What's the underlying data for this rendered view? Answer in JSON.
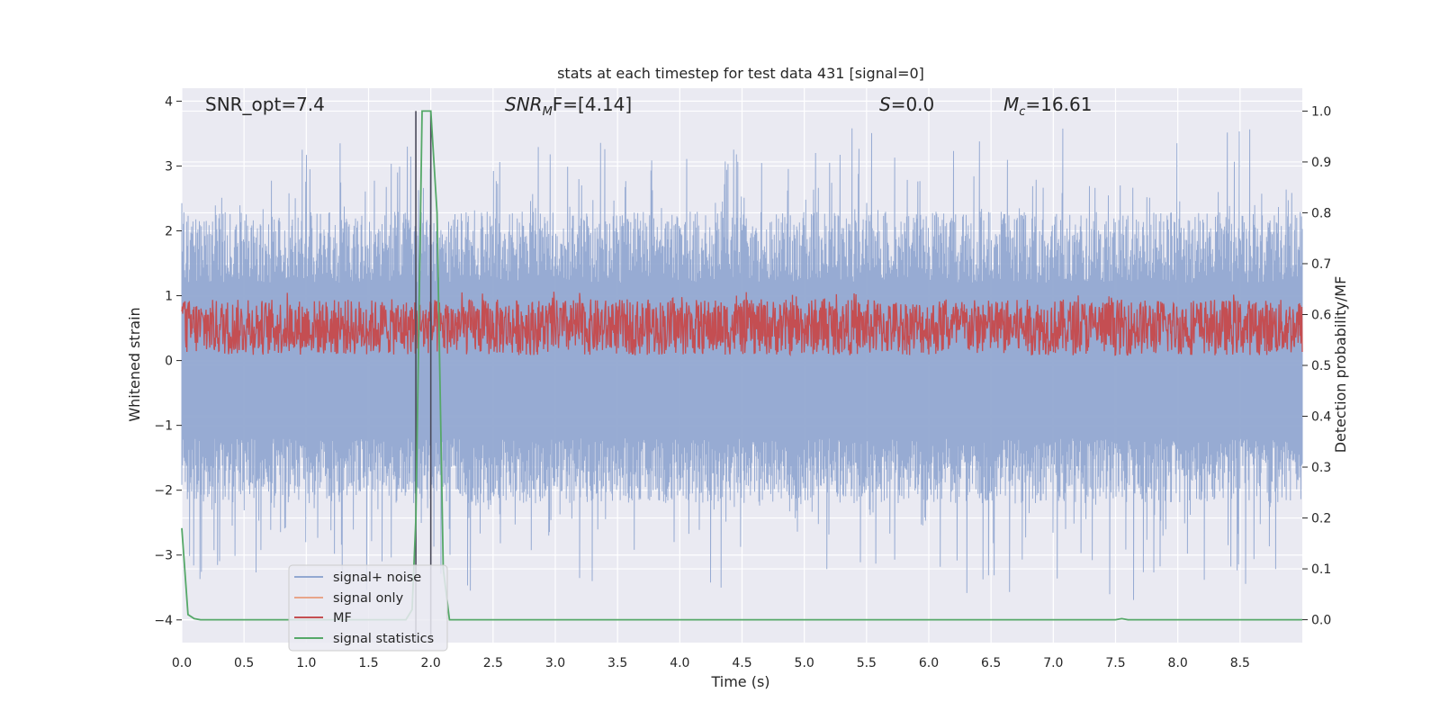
{
  "chart_data": {
    "type": "line",
    "title": "stats at each timestep for test data 431 [signal=0]",
    "xlabel": "Time (s)",
    "ylabel": "Whitened strain",
    "y2label": "Detection probability/MF",
    "xlim": [
      0.0,
      9.0
    ],
    "ylim": [
      -4.35,
      4.2
    ],
    "y2lim": [
      -0.045,
      1.045
    ],
    "xticks": [
      "0.0",
      "0.5",
      "1.0",
      "1.5",
      "2.0",
      "2.5",
      "3.0",
      "3.5",
      "4.0",
      "4.5",
      "5.0",
      "5.5",
      "6.0",
      "6.5",
      "7.0",
      "7.5",
      "8.0",
      "8.5"
    ],
    "yticks": [
      "4",
      "3",
      "2",
      "1",
      "0",
      "−1",
      "−2",
      "−3",
      "−4"
    ],
    "y2ticks": [
      "1.0",
      "0.9",
      "0.8",
      "0.7",
      "0.6",
      "0.5",
      "0.4",
      "0.3",
      "0.2",
      "0.1",
      "0.0"
    ],
    "grid": true,
    "annotations": {
      "snr_opt": "SNR_opt=7.4",
      "snr_mf_base": "SNR",
      "snr_mf_sub": "M",
      "snr_mf_rest": "F=[4.14]",
      "s_var": "S",
      "s_rest": "=0.0",
      "mc_var": "M",
      "mc_sub": "c",
      "mc_rest": "=16.61"
    },
    "vertical_lines": [
      1.88,
      2.0
    ],
    "series": [
      {
        "name": "signal+ noise",
        "color": "#92a8d1",
        "amplitude_range": [
          -3.9,
          3.75
        ],
        "style": "noise"
      },
      {
        "name": "signal only",
        "color": "#e8a58a",
        "values": [],
        "style": "flat"
      },
      {
        "name": "MF",
        "color": "#c44e52",
        "axis": "y2",
        "range": [
          0.52,
          0.63
        ],
        "style": "band"
      },
      {
        "name": "signal statistics",
        "color": "#55a868",
        "axis": "y2",
        "x": [
          0.0,
          0.05,
          0.1,
          0.15,
          1.8,
          1.85,
          1.88,
          1.93,
          2.0,
          2.05,
          2.1,
          2.15,
          7.5,
          7.55,
          7.6,
          9.0
        ],
        "y": [
          0.18,
          0.01,
          0.002,
          0.0,
          0.0,
          0.02,
          0.2,
          1.0,
          1.0,
          0.8,
          0.1,
          0.0,
          0.0,
          0.002,
          0.0,
          0.0
        ]
      }
    ],
    "legend": {
      "position": "lower-left"
    }
  }
}
